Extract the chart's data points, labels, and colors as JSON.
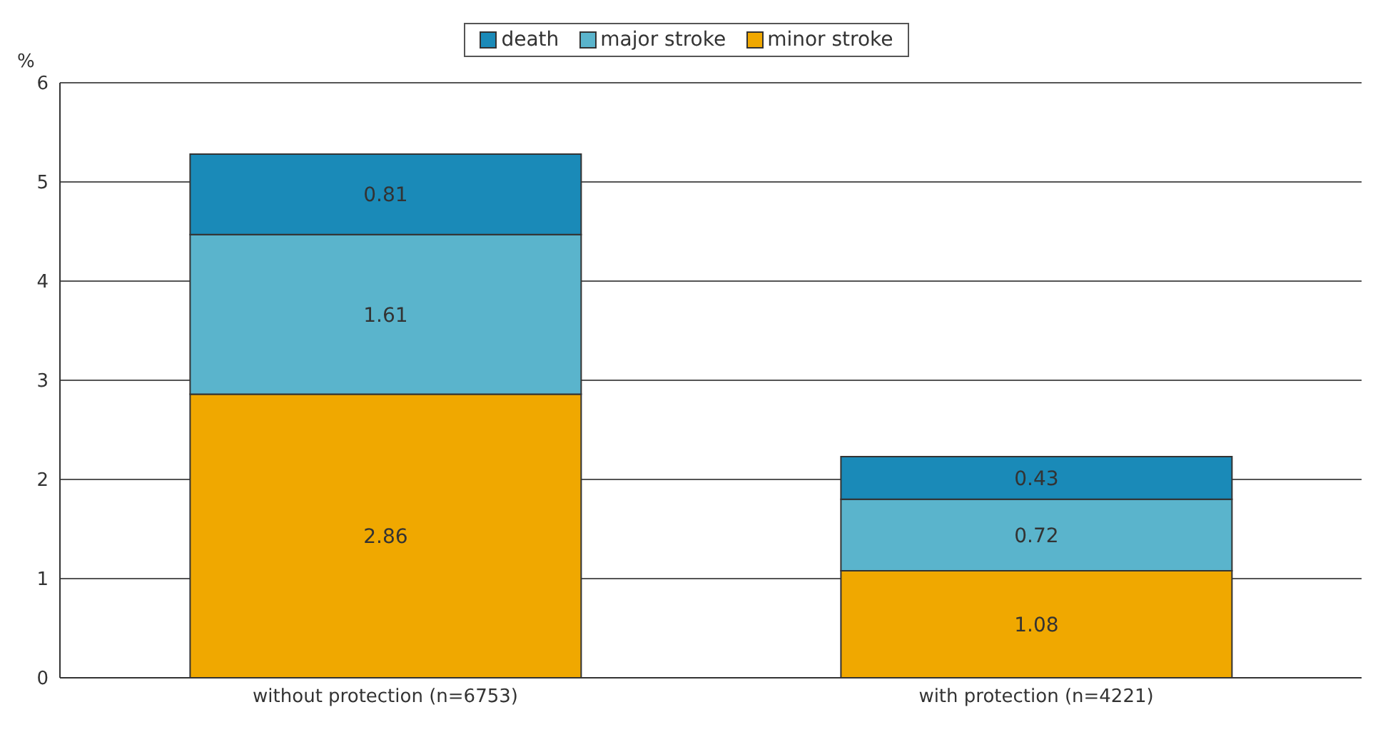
{
  "chart_data": {
    "type": "bar",
    "stacked": true,
    "ylabel": "%",
    "categories": [
      "without protection (n=6753)",
      "with protection (n=4221)"
    ],
    "series": [
      {
        "name": "minor stroke",
        "color": "#f0a800",
        "values": [
          2.86,
          1.08
        ]
      },
      {
        "name": "major stroke",
        "color": "#5ab4cc",
        "values": [
          1.61,
          0.72
        ]
      },
      {
        "name": "death",
        "color": "#1a8ab8",
        "values": [
          0.81,
          0.43
        ]
      }
    ],
    "ylim": [
      0,
      6
    ],
    "yticks": [
      0,
      1,
      2,
      3,
      4,
      5,
      6
    ],
    "grid": "y",
    "legend": "top",
    "data_labels": true
  }
}
